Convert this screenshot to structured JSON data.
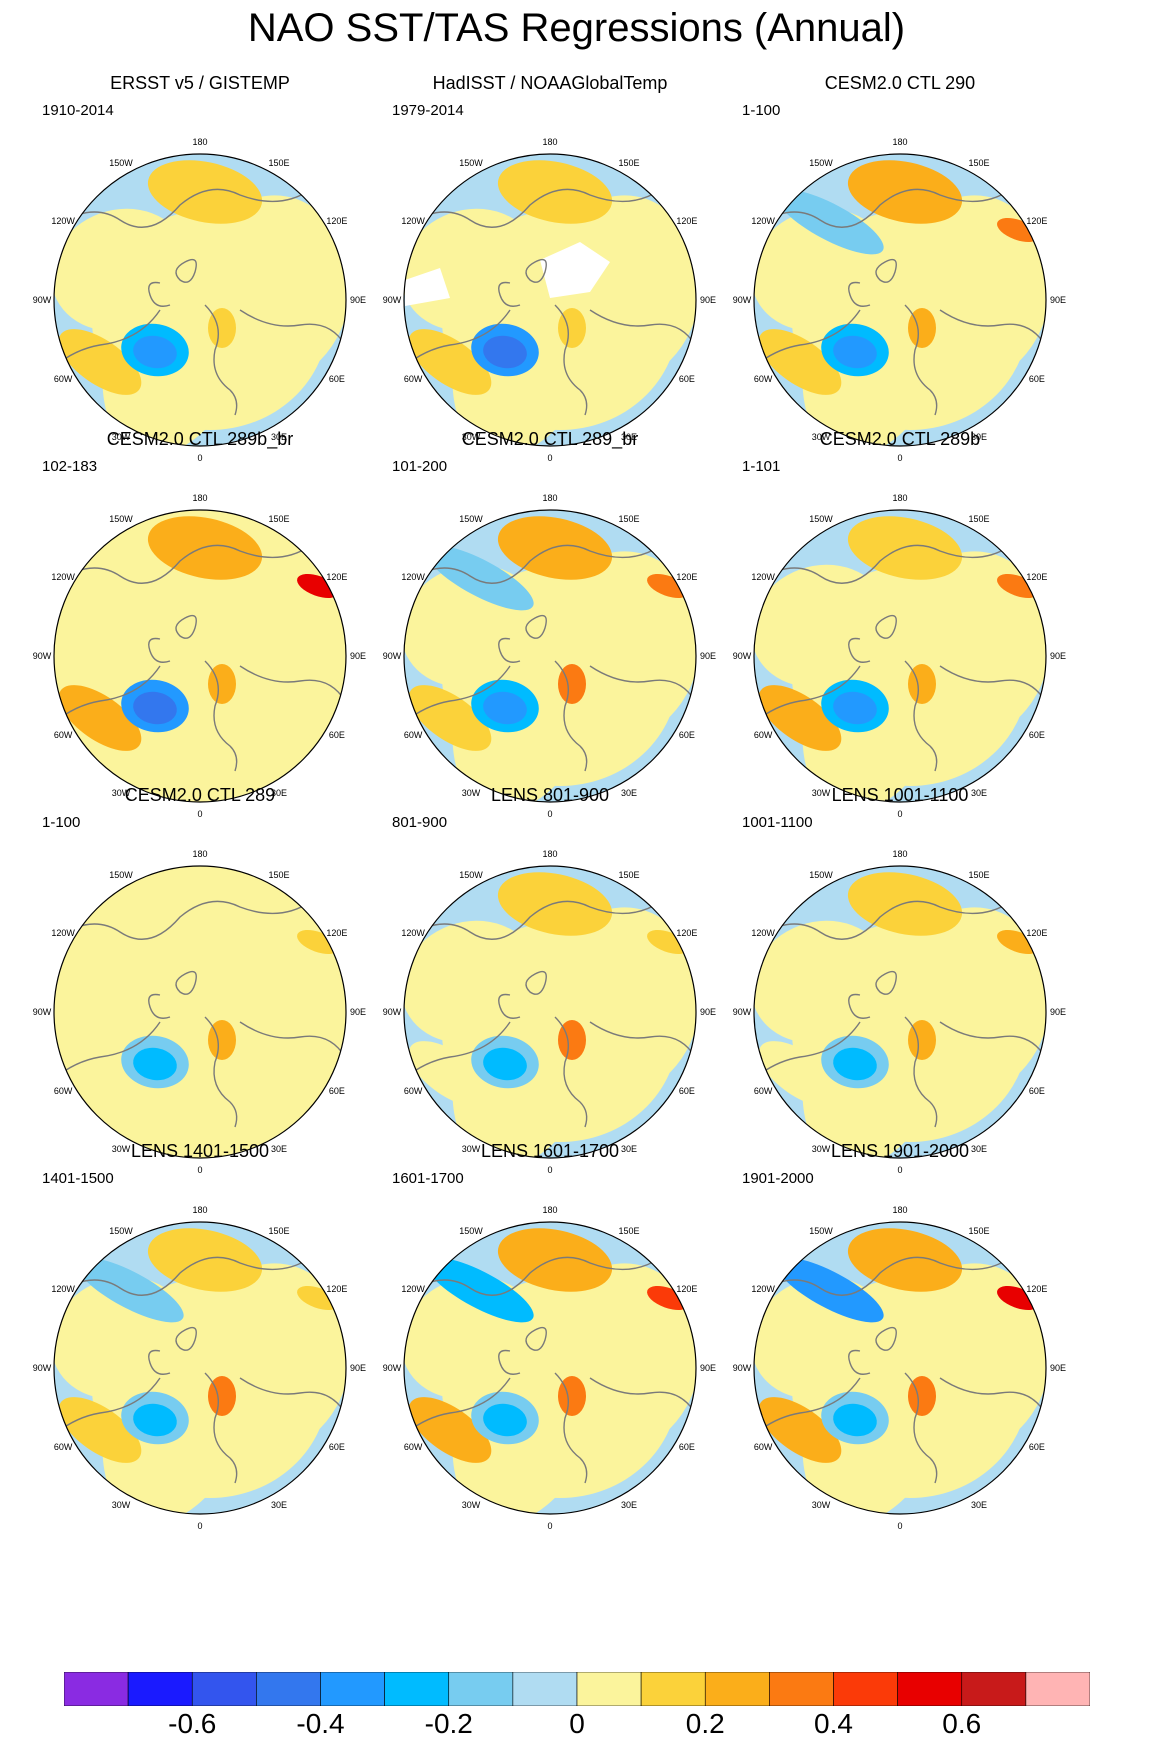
{
  "title": "NAO SST/TAS Regressions (Annual)",
  "lon_labels": [
    "180",
    "150E",
    "120E",
    "90E",
    "60E",
    "30E",
    "0",
    "30W",
    "60W",
    "90W",
    "120W",
    "150W"
  ],
  "colors": {
    "land_outline": "#7a7a7a",
    "map_border": "#000000",
    "missing": "#ffffff"
  },
  "palette": [
    "#8a2be2",
    "#1a1aff",
    "#3355ee",
    "#3377ee",
    "#2299ff",
    "#00bbff",
    "#77ccf0",
    "#b0dcf2",
    "#fbf49c",
    "#fbd23a",
    "#fbae1a",
    "#fb7a12",
    "#fb3a08",
    "#e80000",
    "#c81a1a",
    "#ffb4b4"
  ],
  "colorbar_labels": [
    "-0.6",
    "-0.4",
    "-0.2",
    "0",
    "0.2",
    "0.4",
    "0.6"
  ],
  "panels": [
    {
      "title": "ERSST v5 / GISTEMP",
      "years": "1910-2014",
      "pacific_level": 9,
      "aleutian_level": 0,
      "atlantic_sub_level": 9,
      "labrador_level": 4,
      "europe_level": 9,
      "siberia_level": 0,
      "ocean_base": 7,
      "land_base": 8,
      "missing_data": false
    },
    {
      "title": "HadISST / NOAAGlobalTemp",
      "years": "1979-2014",
      "pacific_level": 9,
      "aleutian_level": 0,
      "atlantic_sub_level": 9,
      "labrador_level": 3,
      "europe_level": 9,
      "siberia_level": 0,
      "ocean_base": 7,
      "land_base": 8,
      "missing_data": true
    },
    {
      "title": "CESM2.0 CTL 290",
      "years": "1-100",
      "pacific_level": 10,
      "aleutian_level": 6,
      "atlantic_sub_level": 9,
      "labrador_level": 4,
      "europe_level": 10,
      "siberia_level": 11,
      "ocean_base": 7,
      "land_base": 8,
      "missing_data": false
    },
    {
      "title": "CESM2.0 CTL 289b_br",
      "years": "102-183",
      "pacific_level": 10,
      "aleutian_level": 0,
      "atlantic_sub_level": 10,
      "labrador_level": 3,
      "europe_level": 10,
      "siberia_level": 13,
      "ocean_base": 8,
      "land_base": 8,
      "missing_data": false
    },
    {
      "title": "CESM2.0 CTL 289_br",
      "years": "101-200",
      "pacific_level": 10,
      "aleutian_level": 6,
      "atlantic_sub_level": 9,
      "labrador_level": 4,
      "europe_level": 11,
      "siberia_level": 11,
      "ocean_base": 7,
      "land_base": 8,
      "missing_data": false
    },
    {
      "title": "CESM2.0 CTL 289b",
      "years": "1-101",
      "pacific_level": 9,
      "aleutian_level": 0,
      "atlantic_sub_level": 10,
      "labrador_level": 4,
      "europe_level": 10,
      "siberia_level": 11,
      "ocean_base": 7,
      "land_base": 8,
      "missing_data": false
    },
    {
      "title": "CESM2.0 CTL 289",
      "years": "1-100",
      "pacific_level": 8,
      "aleutian_level": 0,
      "atlantic_sub_level": 8,
      "labrador_level": 5,
      "europe_level": 10,
      "siberia_level": 9,
      "ocean_base": 8,
      "land_base": 8,
      "missing_data": false
    },
    {
      "title": "LENS 801-900",
      "years": "801-900",
      "pacific_level": 9,
      "aleutian_level": 0,
      "atlantic_sub_level": 8,
      "labrador_level": 5,
      "europe_level": 11,
      "siberia_level": 9,
      "ocean_base": 7,
      "land_base": 8,
      "missing_data": false
    },
    {
      "title": "LENS 1001-1100",
      "years": "1001-1100",
      "pacific_level": 9,
      "aleutian_level": 0,
      "atlantic_sub_level": 8,
      "labrador_level": 5,
      "europe_level": 10,
      "siberia_level": 10,
      "ocean_base": 7,
      "land_base": 8,
      "missing_data": false
    },
    {
      "title": "LENS 1401-1500",
      "years": "1401-1500",
      "pacific_level": 9,
      "aleutian_level": 6,
      "atlantic_sub_level": 9,
      "labrador_level": 5,
      "europe_level": 11,
      "siberia_level": 9,
      "ocean_base": 7,
      "land_base": 8,
      "missing_data": false
    },
    {
      "title": "LENS 1601-1700",
      "years": "1601-1700",
      "pacific_level": 10,
      "aleutian_level": 5,
      "atlantic_sub_level": 10,
      "labrador_level": 5,
      "europe_level": 11,
      "siberia_level": 12,
      "ocean_base": 7,
      "land_base": 8,
      "missing_data": false
    },
    {
      "title": "LENS 1901-2000",
      "years": "1901-2000",
      "pacific_level": 10,
      "aleutian_level": 4,
      "atlantic_sub_level": 10,
      "labrador_level": 5,
      "europe_level": 11,
      "siberia_level": 13,
      "ocean_base": 7,
      "land_base": 8,
      "missing_data": false
    }
  ]
}
